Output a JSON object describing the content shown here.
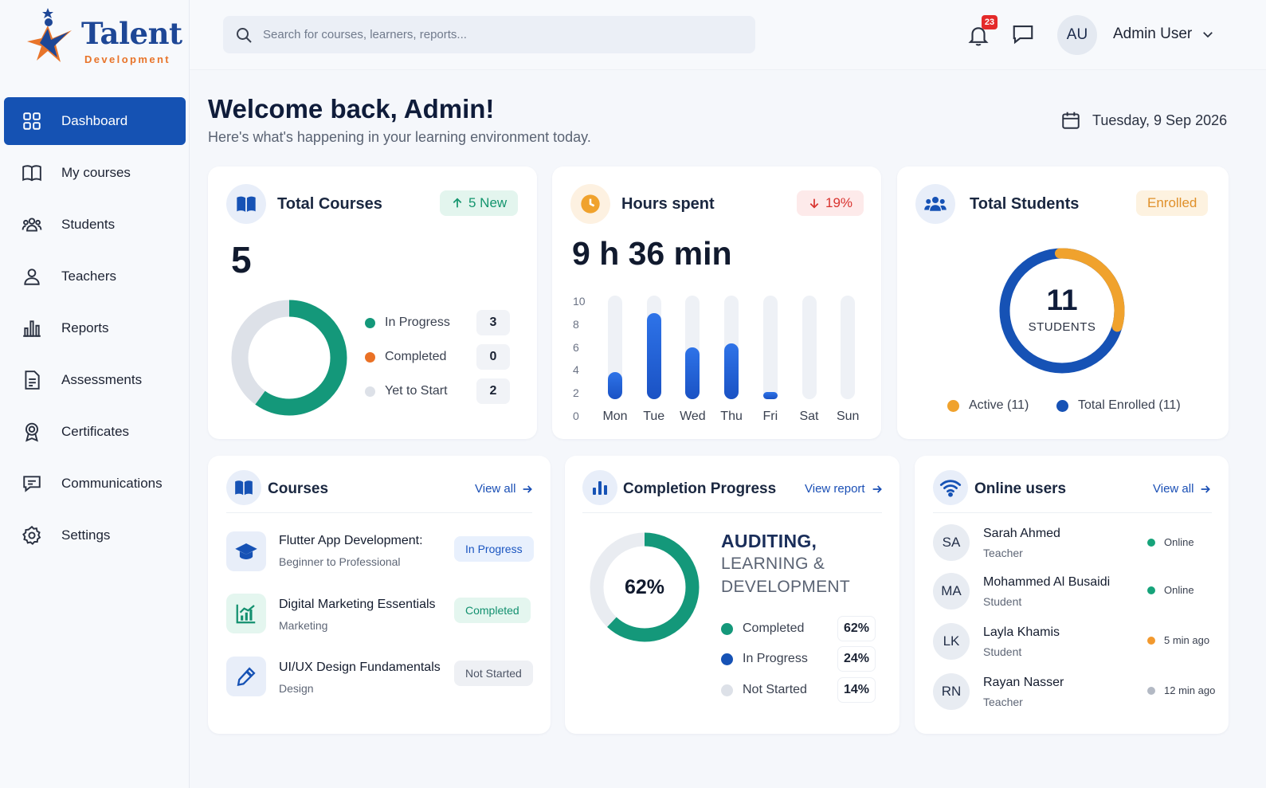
{
  "brand": {
    "title": "Talent",
    "subtitle": "Development"
  },
  "nav": [
    {
      "label": "Dashboard",
      "icon": "grid-icon",
      "active": true
    },
    {
      "label": "My courses",
      "icon": "book-icon"
    },
    {
      "label": "Students",
      "icon": "users-icon"
    },
    {
      "label": "Teachers",
      "icon": "user-icon"
    },
    {
      "label": "Reports",
      "icon": "bar-chart-icon"
    },
    {
      "label": "Assessments",
      "icon": "document-icon"
    },
    {
      "label": "Certificates",
      "icon": "award-icon"
    },
    {
      "label": "Communications",
      "icon": "message-icon"
    },
    {
      "label": "Settings",
      "icon": "gear-icon"
    }
  ],
  "header": {
    "search_placeholder": "Search for courses, learners, reports...",
    "notification_count": "23",
    "avatar_initials": "AU",
    "user_name": "Admin User"
  },
  "welcome": {
    "title": "Welcome back, Admin!",
    "subtitle": "Here's what's happening in your learning environment today.",
    "date": "Tuesday, 9 Sep 2026"
  },
  "total_courses": {
    "title": "Total Courses",
    "badge": "5 New",
    "value": "5",
    "legend": [
      {
        "label": "In Progress",
        "count": "3",
        "color": "#14987a"
      },
      {
        "label": "Completed",
        "count": "0",
        "color": "#ea7125"
      },
      {
        "label": "Yet to Start",
        "count": "2",
        "color": "#dde1e8"
      }
    ]
  },
  "hours": {
    "title": "Hours spent",
    "badge": "19%",
    "value": "9 h 36 min"
  },
  "total_students": {
    "title": "Total Students",
    "badge": "Enrolled",
    "value": "11",
    "unit": "STUDENTS",
    "legend": [
      {
        "label": "Active (11)",
        "color": "#f0a22d"
      },
      {
        "label": "Total Enrolled (11)",
        "color": "#1652b5"
      }
    ]
  },
  "courses": {
    "title": "Courses",
    "view_all": "View all",
    "items": [
      {
        "title": "Flutter App Development:",
        "subtitle": "Beginner to Professional",
        "status": "In Progress",
        "icon": "graduation-cap-icon",
        "status_color": "#1a55c0",
        "status_bg": "#e8f0fd"
      },
      {
        "title": "Digital Marketing Essentials",
        "subtitle": "Marketing",
        "status": "Completed",
        "icon": "growth-chart-icon",
        "status_color": "#12906f",
        "status_bg": "#e4f6ef"
      },
      {
        "title": "UI/UX Design Fundamentals",
        "subtitle": "Design",
        "status": "Not Started",
        "icon": "pencil-icon",
        "status_color": "#4d5566",
        "status_bg": "#eef0f4"
      }
    ]
  },
  "completion": {
    "title": "Completion Progress",
    "view_report": "View report",
    "percent": "62%",
    "department_line1": "AUDITING,",
    "department_line2": "LEARNING &",
    "department_line3": "DEVELOPMENT",
    "legend": [
      {
        "label": "Completed",
        "value": "62%",
        "color": "#14987a"
      },
      {
        "label": "In Progress",
        "value": "24%",
        "color": "#1652b5"
      },
      {
        "label": "Not Started",
        "value": "14%",
        "color": "#dde1e8"
      }
    ]
  },
  "online_users": {
    "title": "Online users",
    "view_all": "View all",
    "users": [
      {
        "initials": "SA",
        "name": "Sarah Ahmed",
        "role": "Teacher",
        "status": "Online",
        "status_color": "#16a37a"
      },
      {
        "initials": "MA",
        "name": "Mohammed Al Busaidi",
        "role": "Student",
        "status": "Online",
        "status_color": "#16a37a"
      },
      {
        "initials": "LK",
        "name": "Layla Khamis",
        "role": "Student",
        "status": "5 min ago",
        "status_color": "#f2992e"
      },
      {
        "initials": "RN",
        "name": "Rayan Nasser",
        "role": "Teacher",
        "status": "12 min ago",
        "status_color": "#b3b9c4"
      }
    ]
  },
  "chart_data": [
    {
      "type": "pie",
      "title": "Total Courses",
      "categories": [
        "In Progress",
        "Completed",
        "Yet to Start"
      ],
      "values": [
        3,
        0,
        2
      ]
    },
    {
      "type": "bar",
      "title": "Hours spent",
      "categories": [
        "Mon",
        "Tue",
        "Wed",
        "Thu",
        "Fri",
        "Sat",
        "Sun"
      ],
      "values": [
        2.6,
        8.3,
        5,
        5.4,
        0.5,
        0,
        0
      ],
      "ylim": [
        0,
        10
      ],
      "yticks": [
        "10",
        "8",
        "6",
        "4",
        "2",
        "0"
      ]
    },
    {
      "type": "pie",
      "title": "Total Students",
      "categories": [
        "Active (11)",
        "Total Enrolled (11)"
      ],
      "values": [
        11,
        11
      ]
    },
    {
      "type": "pie",
      "title": "Completion Progress",
      "categories": [
        "Completed",
        "In Progress",
        "Not Started"
      ],
      "values": [
        62,
        24,
        14
      ]
    }
  ]
}
